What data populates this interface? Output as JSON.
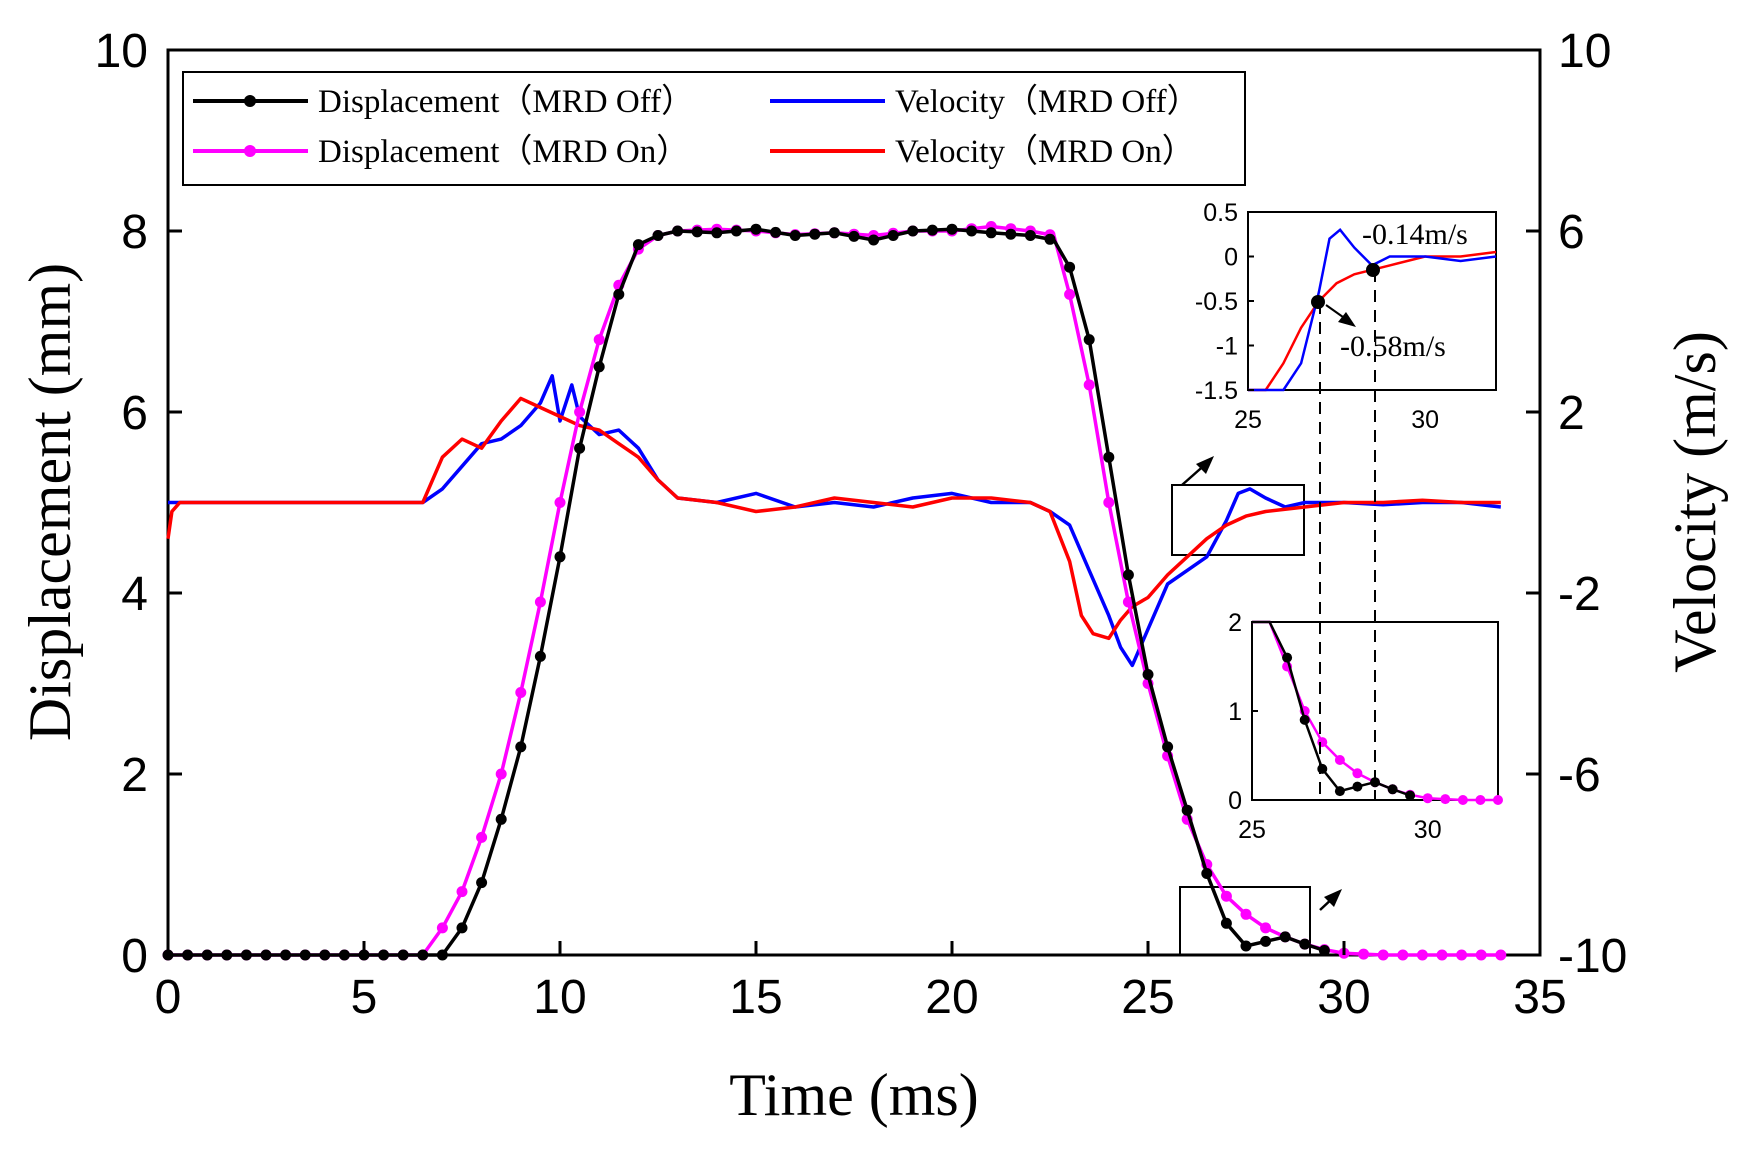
{
  "chart_data": {
    "type": "line",
    "xlabel": "Time (ms)",
    "ylabel_left": "Displacement (mm)",
    "ylabel_right": "Velocity (m/s)",
    "xlim": [
      0,
      35
    ],
    "ylim_left": [
      0,
      10
    ],
    "ylim_right": [
      -10,
      10
    ],
    "x_ticks": [
      "0",
      "5",
      "10",
      "15",
      "20",
      "25",
      "30",
      "35"
    ],
    "y_left_ticks": [
      "0",
      "2",
      "4",
      "6",
      "8",
      "10"
    ],
    "y_right_ticks": [
      "-10",
      "-6",
      "-2",
      "2",
      "6",
      "10"
    ],
    "grid": false,
    "legend_position": "top-left",
    "series": [
      {
        "name": "Displacement（MRD Off）",
        "axis": "left",
        "color": "#000000",
        "marker": "circle",
        "x": [
          0,
          7,
          7.5,
          8,
          8.5,
          9,
          9.5,
          10,
          10.5,
          11,
          11.5,
          12,
          12.5,
          13,
          14,
          15,
          16,
          17,
          18,
          19,
          20,
          21,
          22,
          22.6,
          23,
          23.5,
          24,
          24.5,
          25,
          25.5,
          26,
          26.5,
          27,
          27.5,
          28,
          28.5,
          29,
          29.5
        ],
        "y": [
          0,
          0,
          0.3,
          0.8,
          1.5,
          2.3,
          3.3,
          4.4,
          5.6,
          6.5,
          7.3,
          7.85,
          7.95,
          8.0,
          7.98,
          8.02,
          7.95,
          7.98,
          7.9,
          8.0,
          8.02,
          7.98,
          7.95,
          7.9,
          7.6,
          6.8,
          5.5,
          4.2,
          3.1,
          2.3,
          1.6,
          0.9,
          0.35,
          0.1,
          0.15,
          0.2,
          0.12,
          0.05
        ]
      },
      {
        "name": "Displacement（MRD On）",
        "axis": "left",
        "color": "#ff00ff",
        "marker": "circle",
        "x": [
          0,
          6.5,
          7,
          7.5,
          8,
          8.5,
          9,
          9.5,
          10,
          10.5,
          11,
          11.5,
          12,
          12.5,
          13,
          14,
          15,
          16,
          17,
          18,
          19,
          20,
          21,
          22,
          22.6,
          23,
          23.5,
          24,
          24.5,
          25,
          25.5,
          26,
          26.5,
          27,
          27.5,
          28,
          28.5,
          29,
          29.5,
          30,
          31,
          32,
          33,
          34
        ],
        "y": [
          0,
          0,
          0.3,
          0.7,
          1.3,
          2.0,
          2.9,
          3.9,
          5.0,
          6.0,
          6.8,
          7.4,
          7.8,
          7.95,
          8.0,
          8.02,
          8.0,
          7.96,
          7.98,
          7.95,
          8.0,
          8.0,
          8.05,
          8.0,
          7.95,
          7.3,
          6.3,
          5.0,
          3.9,
          3.0,
          2.2,
          1.5,
          1.0,
          0.65,
          0.45,
          0.3,
          0.2,
          0.12,
          0.06,
          0.02,
          0,
          0,
          0,
          0
        ]
      },
      {
        "name": "Velocity（MRD Off）",
        "axis": "right",
        "color": "#0000ff",
        "marker": "none",
        "x": [
          0,
          6.5,
          7,
          7.5,
          8,
          8.5,
          9,
          9.5,
          9.8,
          10,
          10.3,
          10.5,
          11,
          11.5,
          12,
          12.5,
          13,
          14,
          15,
          16,
          17,
          18,
          19,
          20,
          21,
          22,
          22.5,
          23,
          23.5,
          24,
          24.3,
          24.6,
          25,
          25.5,
          26,
          26.5,
          27,
          27.3,
          27.6,
          28,
          28.5,
          29,
          30,
          31,
          32,
          33,
          34
        ],
        "y": [
          0,
          0,
          0.3,
          0.8,
          1.3,
          1.4,
          1.7,
          2.2,
          2.8,
          1.8,
          2.6,
          1.9,
          1.5,
          1.6,
          1.2,
          0.5,
          0.1,
          0,
          0.2,
          -0.1,
          0,
          -0.1,
          0.1,
          0.2,
          0,
          0,
          -0.2,
          -0.5,
          -1.5,
          -2.5,
          -3.2,
          -3.6,
          -2.8,
          -1.8,
          -1.5,
          -1.2,
          -0.4,
          0.2,
          0.3,
          0.1,
          -0.1,
          0,
          0,
          -0.05,
          0,
          0,
          -0.1
        ]
      },
      {
        "name": "Velocity（MRD On）",
        "axis": "right",
        "color": "#ff0000",
        "marker": "none",
        "x": [
          0,
          0.1,
          0.3,
          6.5,
          7,
          7.5,
          8,
          8.5,
          9,
          9.5,
          10,
          10.5,
          11,
          11.5,
          12,
          12.5,
          13,
          14,
          15,
          16,
          17,
          18,
          19,
          20,
          21,
          22,
          22.5,
          23,
          23.3,
          23.6,
          24,
          24.3,
          24.6,
          25,
          25.5,
          26,
          26.5,
          27,
          27.5,
          28,
          29,
          30,
          31,
          32,
          33,
          34
        ],
        "y": [
          -0.8,
          -0.2,
          0,
          0,
          1,
          1.4,
          1.2,
          1.8,
          2.3,
          2.1,
          1.9,
          1.7,
          1.6,
          1.3,
          1.0,
          0.5,
          0.1,
          0,
          -0.2,
          -0.1,
          0.1,
          0,
          -0.1,
          0.1,
          0.1,
          0,
          -0.2,
          -1.3,
          -2.5,
          -2.9,
          -3,
          -2.6,
          -2.3,
          -2.1,
          -1.6,
          -1.2,
          -0.8,
          -0.5,
          -0.3,
          -0.2,
          -0.1,
          0,
          0,
          0.05,
          0,
          0
        ]
      }
    ],
    "insets": [
      {
        "kind": "velocity-zoom",
        "xlim": [
          25,
          32
        ],
        "ylim": [
          -1.5,
          0.5
        ],
        "x_ticks": [
          "25",
          "30"
        ],
        "y_ticks": [
          "0.5",
          "0",
          "-0.5",
          "-1",
          "-1.5"
        ],
        "annotations": [
          {
            "text": "-0.14m/s",
            "x": 28.7,
            "y": -0.14
          },
          {
            "text": "-0.58m/s",
            "x": 27.0,
            "y": -0.58
          }
        ]
      },
      {
        "kind": "displacement-zoom",
        "xlim": [
          25,
          32
        ],
        "ylim": [
          0,
          2
        ],
        "x_ticks": [
          "25",
          "30"
        ],
        "y_ticks": [
          "2",
          "1",
          "0"
        ]
      }
    ]
  }
}
